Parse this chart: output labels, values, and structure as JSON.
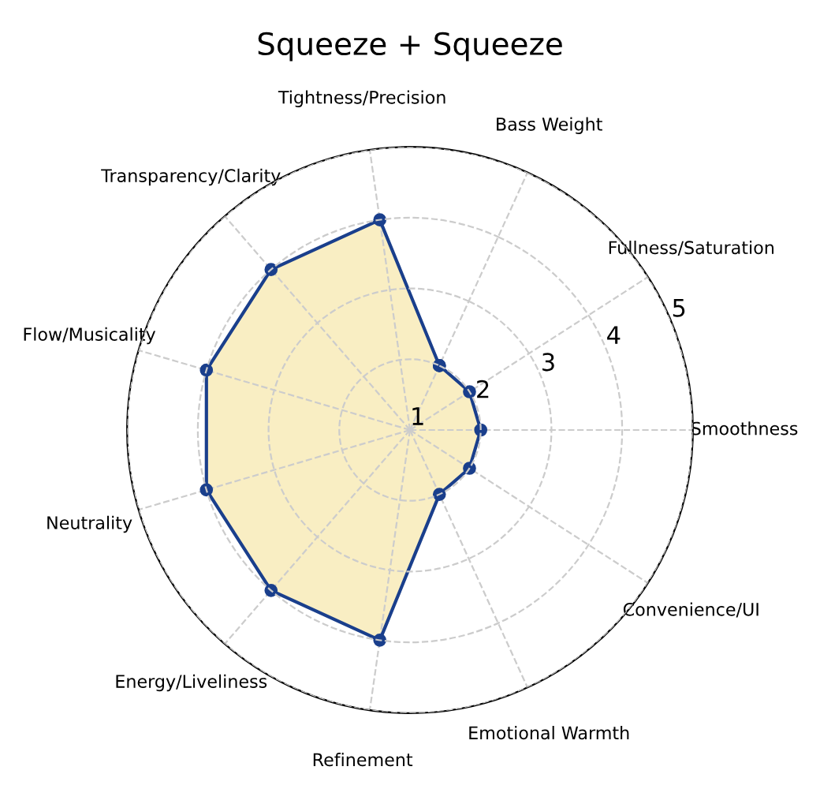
{
  "chart_data": {
    "type": "radar",
    "title": "Squeeze + Squeeze",
    "categories": [
      "Bass Weight",
      "Fullness/Saturation",
      "Smoothness",
      "Convenience/UI",
      "Emotional Warmth",
      "Refinement",
      "Energy/Liveliness",
      "Neutrality",
      "Flow/Musicality",
      "Transparency/Clarity",
      "Tightness/Precision"
    ],
    "series": [
      {
        "color": "#1a3f8c",
        "values": [
          2,
          2,
          2,
          2,
          2,
          4,
          4,
          4,
          4,
          4,
          4
        ]
      }
    ],
    "ylim": [
      1,
      5
    ],
    "yticks": [
      1,
      2,
      3,
      4,
      5
    ],
    "grid": true,
    "marker": "circle",
    "line_style": "solid"
  }
}
